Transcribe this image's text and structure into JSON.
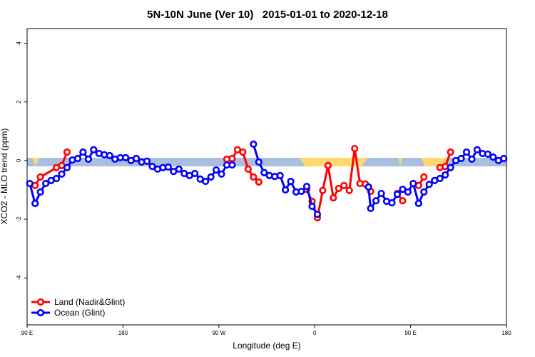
{
  "chart_data": {
    "type": "line",
    "title": "5N-10N June (Ver 10)   2015-01-01 to 2020-12-18",
    "xlabel": "Longitude (deg E)",
    "ylabel": "XCO2 - MLO trend (ppm)",
    "xlim": [
      90,
      540
    ],
    "ylim": [
      -5.6,
      4.5
    ],
    "xticks": [
      {
        "value": 90,
        "label": "90 E"
      },
      180,
      {
        "value": 270,
        "label": "90 W"
      },
      {
        "value": 360,
        "label": "0"
      },
      {
        "value": 450,
        "label": "90 E"
      },
      {
        "value": 540,
        "label": "180"
      }
    ],
    "yticks": [
      -4,
      -2,
      0,
      2,
      4
    ],
    "legend": "bottom-left",
    "series": [
      {
        "name": "Land (Nadir&Glint)",
        "color": "#ff0000",
        "x": [
          97.5,
          102.5,
          117.5,
          122.5,
          127.5,
          null,
          277.5,
          282.5,
          287.5,
          292.5,
          297.5,
          302.5,
          307.5,
          null,
          352.5,
          357.5,
          362.5,
          367.5,
          372.5,
          377.5,
          382.5,
          387.5,
          392.5,
          397.5,
          402.5,
          407.5,
          412.5,
          null,
          437.5,
          442.5,
          null,
          457.5,
          462.5,
          null,
          477.5,
          482.5,
          487.5
        ],
        "values": [
          -0.85,
          -0.56,
          -0.24,
          -0.17,
          0.29,
          null,
          0.05,
          0.07,
          0.37,
          0.29,
          -0.29,
          -0.56,
          -0.73,
          null,
          -0.98,
          -1.39,
          -1.95,
          -1.02,
          -0.17,
          -1.27,
          -0.95,
          -0.85,
          -1.02,
          0.41,
          -0.78,
          -0.8,
          -1.05,
          null,
          -1.12,
          -1.37,
          null,
          -0.85,
          -0.56,
          null,
          -0.24,
          -0.2,
          0.29
        ]
      },
      {
        "name": "Ocean (Glint)",
        "color": "#0000ff",
        "x": [
          92.5,
          97.5,
          102.5,
          107.5,
          112.5,
          117.5,
          122.5,
          127.5,
          132.5,
          137.5,
          142.5,
          147.5,
          152.5,
          157.5,
          162.5,
          167.5,
          172.5,
          177.5,
          182.5,
          187.5,
          192.5,
          197.5,
          202.5,
          207.5,
          212.5,
          217.5,
          222.5,
          227.5,
          232.5,
          237.5,
          242.5,
          247.5,
          252.5,
          257.5,
          262.5,
          267.5,
          272.5,
          277.5,
          282.5,
          null,
          302.5,
          307.5,
          312.5,
          317.5,
          322.5,
          327.5,
          332.5,
          337.5,
          342.5,
          347.5,
          352.5,
          357.5,
          362.5,
          null,
          410.5,
          412.5,
          417.5,
          422.5,
          427.5,
          432.5,
          437.5,
          442.5,
          447.5,
          452.5,
          457.5,
          462.5,
          467.5,
          472.5,
          477.5,
          482.5,
          487.5,
          492.5,
          497.5,
          502.5,
          507.5,
          512.5,
          517.5,
          522.5,
          527.5,
          532.5,
          537.5
        ],
        "values": [
          -0.78,
          -1.46,
          -1.07,
          -0.78,
          -0.68,
          -0.61,
          -0.46,
          -0.24,
          0.02,
          0.07,
          0.29,
          0.05,
          0.37,
          0.24,
          0.2,
          0.17,
          0.05,
          0.1,
          0.1,
          0,
          0.07,
          -0.05,
          -0.02,
          -0.2,
          -0.29,
          -0.24,
          -0.22,
          -0.37,
          -0.29,
          -0.44,
          -0.51,
          -0.44,
          -0.63,
          -0.71,
          -0.56,
          -0.32,
          -0.46,
          -0.15,
          -0.15,
          null,
          0.56,
          -0.05,
          -0.41,
          -0.51,
          -0.54,
          -0.51,
          -1.0,
          -0.71,
          -1.07,
          -1.05,
          -0.88,
          -1.56,
          -1.83,
          null,
          -0.9,
          -1.63,
          -1.37,
          -1.12,
          -1.39,
          -1.44,
          -1.15,
          -0.98,
          -1.07,
          -0.78,
          -1.46,
          -1.07,
          -0.81,
          -0.68,
          -0.61,
          -0.49,
          -0.24,
          0,
          0.07,
          0.29,
          0.05,
          0.37,
          0.24,
          0.22,
          0.12,
          0,
          0.07
        ]
      }
    ]
  }
}
